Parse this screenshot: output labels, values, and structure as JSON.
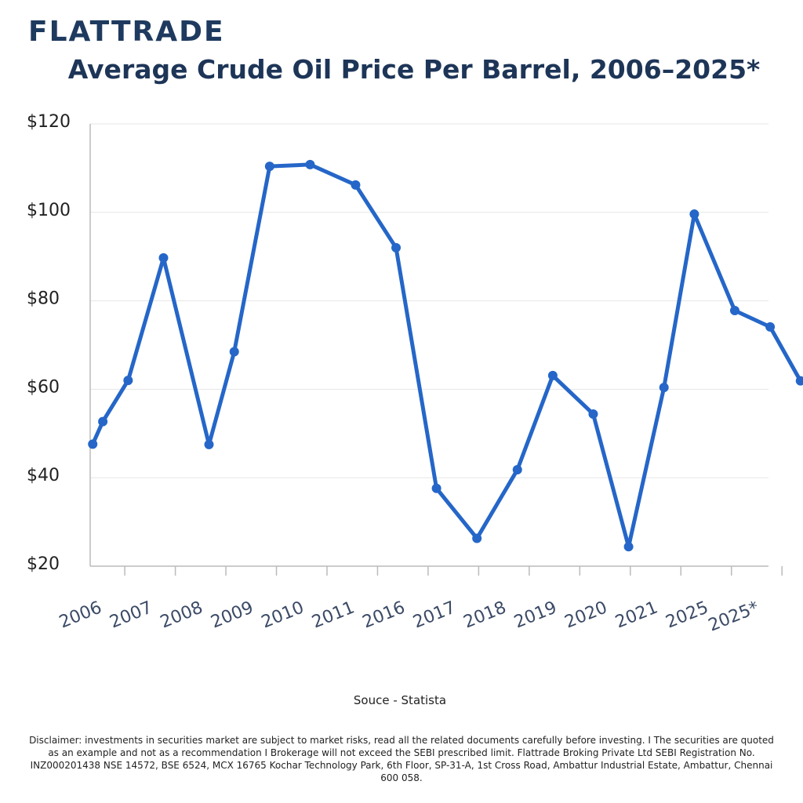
{
  "logo": "FLATTRADE",
  "chart_data": {
    "type": "line",
    "title": "Average Crude Oil Price Per Barrel, 2006–2025*",
    "xlim": [
      -0.25,
      13.85
    ],
    "xticks": [
      {
        "value": 0,
        "label": "2006"
      },
      {
        "value": 1,
        "label": "2007"
      },
      {
        "value": 2,
        "label": "2008"
      },
      {
        "value": 3,
        "label": "2009"
      },
      {
        "value": 4,
        "label": "2010"
      },
      {
        "value": 5,
        "label": "2011"
      },
      {
        "value": 6,
        "label": "2016"
      },
      {
        "value": 7,
        "label": "2017"
      },
      {
        "value": 8,
        "label": "2018"
      },
      {
        "value": 9,
        "label": "2019"
      },
      {
        "value": 10,
        "label": "2020"
      },
      {
        "value": 11,
        "label": "2021"
      },
      {
        "value": 12,
        "label": "2025"
      },
      {
        "value": 13,
        "label": "2025*"
      }
    ],
    "ylim": [
      20,
      120
    ],
    "yticks": [
      {
        "value": 20,
        "label": "$20"
      },
      {
        "value": 40,
        "label": "$40"
      },
      {
        "value": 60,
        "label": "$60"
      },
      {
        "value": 80,
        "label": "$80"
      },
      {
        "value": 100,
        "label": "$100"
      },
      {
        "value": 120,
        "label": "$120"
      }
    ],
    "grid": true,
    "series": [
      {
        "color": "#2566c8",
        "x": [
          -0.2,
          0,
          0.5,
          1.2,
          2.1,
          2.6,
          3.3,
          4.1,
          5.0,
          5.8,
          6.6,
          7.4,
          8.2,
          8.9,
          9.7,
          10.4,
          11.1,
          11.7,
          12.5,
          13.2,
          13.8
        ],
        "values": [
          47.6,
          52.7,
          62,
          89.7,
          47.5,
          68.5,
          110.4,
          110.8,
          106.2,
          92,
          37.6,
          26.3,
          41.8,
          63.1,
          54.4,
          24.4,
          60.4,
          99.6,
          77.8,
          74.1,
          61.9
        ]
      }
    ]
  },
  "source": "Souce - Statista",
  "disclaimer": "Disclaimer: investments in securities market are subject to market risks, read all the related documents carefully before investing. I The securities are quoted as an example and not as a recommendation I Brokerage will not exceed the SEBI prescribed limit. Flattrade Broking Private Ltd SEBI Registration No. INZ000201438 NSE 14572, BSE 6524, MCX 16765 Kochar Technology Park, 6th Floor, SP-31-A, 1st Cross Road, Ambattur Industrial Estate, Ambattur, Chennai 600 058."
}
